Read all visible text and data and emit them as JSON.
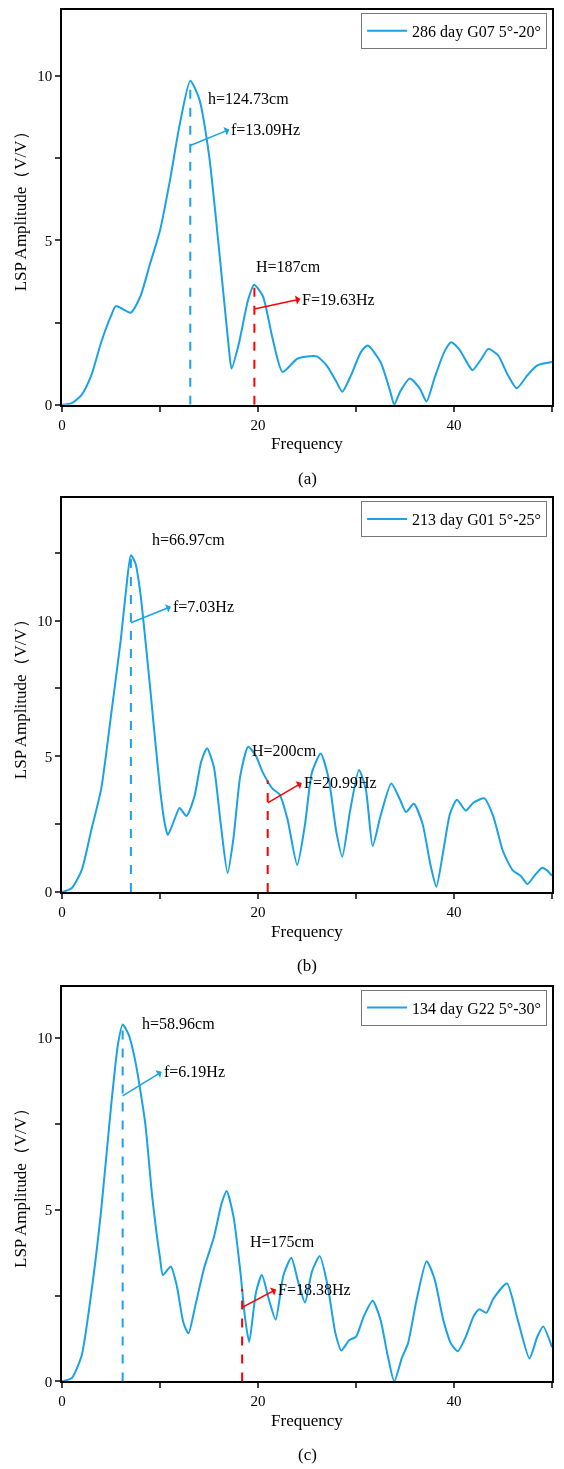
{
  "chart_data": [
    {
      "type": "line",
      "xlabel": "Frequency",
      "ylabel": "LSP Amplitude（V/V）",
      "xlim": [
        0,
        50
      ],
      "ylim": [
        0,
        12
      ],
      "xticks": [
        0,
        {
          "value": 10,
          "label": null
        },
        20,
        {
          "value": 30,
          "label": null
        },
        40,
        {
          "value": 50,
          "label": null
        }
      ],
      "yticks": [
        0,
        {
          "value": 2.5,
          "label": null
        },
        5,
        {
          "value": 7.5,
          "label": null
        },
        10
      ],
      "grid": false,
      "legend": "top right",
      "series": [
        {
          "name": "286 day G07 5°-20°",
          "color": "#1ba1e6",
          "x": [
            0,
            1,
            2,
            3,
            4,
            5,
            5.5,
            7,
            8,
            9,
            10,
            11,
            12,
            13.09,
            14,
            15,
            16,
            17,
            17.3,
            18,
            19,
            19.6,
            20.5,
            21.5,
            22.5,
            24,
            25,
            26,
            27,
            28,
            28.6,
            29.5,
            30.5,
            31.2,
            32.5,
            33.5,
            33.9,
            34.5,
            35.5,
            36.5,
            37.2,
            38,
            39,
            39.7,
            40.5,
            41.5,
            41.9,
            42.8,
            43.5,
            44.5,
            45.5,
            46.4,
            47.5,
            48.5,
            50
          ],
          "values": [
            0,
            0.05,
            0.3,
            0.9,
            1.9,
            2.7,
            3.0,
            2.8,
            3.3,
            4.3,
            5.3,
            6.8,
            8.5,
            9.85,
            9.3,
            7.6,
            4.8,
            1.8,
            1.1,
            1.8,
            3.2,
            3.65,
            3.3,
            2.0,
            1.0,
            1.4,
            1.47,
            1.47,
            1.2,
            0.7,
            0.4,
            0.9,
            1.6,
            1.8,
            1.3,
            0.4,
            0.0,
            0.4,
            0.8,
            0.5,
            0.1,
            0.8,
            1.6,
            1.9,
            1.7,
            1.2,
            1.05,
            1.4,
            1.7,
            1.5,
            0.9,
            0.5,
            0.9,
            1.2,
            1.3
          ]
        }
      ],
      "ref_lines": [
        {
          "axis": "x",
          "value": 13.09,
          "label": "f=13.09Hz",
          "color": "#1ba1e6",
          "line_style": "dashed"
        },
        {
          "axis": "x",
          "value": 19.63,
          "label": "F=19.63Hz",
          "color": "#ff0000",
          "line_style": "dashed"
        }
      ],
      "annotations": [
        {
          "text": "h=124.73cm",
          "x": 13.09,
          "y": 9.85
        },
        {
          "text": "H=187cm",
          "x": 19.63,
          "y": 3.65
        },
        "(a)"
      ]
    },
    {
      "type": "line",
      "xlabel": "Frequency",
      "ylabel": "LSP Amplitude（V/V）",
      "xlim": [
        0,
        50
      ],
      "ylim": [
        0,
        14.5
      ],
      "xticks": [
        0,
        {
          "value": 10,
          "label": null
        },
        20,
        {
          "value": 30,
          "label": null
        },
        40,
        {
          "value": 50,
          "label": null
        }
      ],
      "yticks": [
        0,
        {
          "value": 2.5,
          "label": null
        },
        5,
        {
          "value": 7.5,
          "label": null
        },
        10,
        {
          "value": 12.5,
          "label": null
        }
      ],
      "grid": false,
      "legend": "top right",
      "series": [
        {
          "name": "213 day G01 5°-25°",
          "color": "#1ba1e6",
          "x": [
            0,
            1,
            2,
            3,
            4,
            5,
            6,
            6.5,
            7.03,
            7.5,
            8,
            9,
            10,
            10.5,
            10.8,
            11.5,
            12,
            12.7,
            13.5,
            14.2,
            14.8,
            15.5,
            16.2,
            16.9,
            17.5,
            18.2,
            19,
            19.8,
            20.5,
            21.5,
            22.2,
            23,
            24,
            24.8,
            25.5,
            26.4,
            27.2,
            28,
            28.6,
            29.4,
            30.3,
            31,
            31.7,
            32.5,
            33.6,
            34.5,
            35.1,
            35.9,
            36.8,
            37.6,
            38.2,
            38.9,
            39.6,
            40.3,
            41.2,
            42,
            43.1,
            44,
            45,
            46,
            46.8,
            47.5,
            48.2,
            49,
            49.5,
            50
          ],
          "values": [
            0,
            0.15,
            0.8,
            2.3,
            3.8,
            6.5,
            9.3,
            11,
            12.4,
            12.1,
            11,
            7.5,
            3.8,
            2.5,
            2.1,
            2.7,
            3.1,
            2.8,
            3.5,
            4.8,
            5.3,
            4.6,
            2.5,
            0.7,
            2.0,
            4.3,
            5.35,
            5.0,
            4.4,
            3.8,
            3.6,
            2.7,
            1.0,
            2.5,
            4.4,
            5.1,
            4.2,
            2.2,
            1.3,
            3.0,
            4.5,
            3.8,
            1.7,
            2.8,
            4.0,
            3.4,
            2.95,
            3.25,
            2.5,
            1.0,
            0.2,
            1.5,
            2.9,
            3.4,
            3.0,
            3.3,
            3.45,
            2.8,
            1.5,
            0.8,
            0.6,
            0.3,
            0.6,
            0.9,
            0.8,
            0.6
          ]
        }
      ],
      "ref_lines": [
        {
          "axis": "x",
          "value": 7.03,
          "label": "f=7.03Hz",
          "color": "#1ba1e6",
          "line_style": "dashed"
        },
        {
          "axis": "x",
          "value": 20.99,
          "label": "F=20.99Hz",
          "color": "#ff0000",
          "line_style": "dashed"
        }
      ],
      "annotations": [
        {
          "text": "h=66.97cm",
          "x": 7.03,
          "y": 12.4
        },
        {
          "text": "H=200cm",
          "x": 20.99,
          "y": 4.0
        },
        "(b)"
      ]
    },
    {
      "type": "line",
      "xlabel": "Frequency",
      "ylabel": "LSP Amplitude（V/V）",
      "xlim": [
        0,
        50
      ],
      "ylim": [
        0,
        11.5
      ],
      "xticks": [
        0,
        {
          "value": 10,
          "label": null
        },
        20,
        {
          "value": 30,
          "label": null
        },
        40,
        {
          "value": 50,
          "label": null
        }
      ],
      "yticks": [
        0,
        {
          "value": 2.5,
          "label": null
        },
        5,
        {
          "value": 7.5,
          "label": null
        },
        10
      ],
      "grid": false,
      "legend": "top right",
      "series": [
        {
          "name": "134 day G22 5°-30°",
          "color": "#1ba1e6",
          "x": [
            0,
            1,
            2,
            3,
            4,
            5,
            5.7,
            6.19,
            6.8,
            7.5,
            8.5,
            9.2,
            10,
            10.3,
            11.1,
            11.7,
            12.4,
            12.9,
            13.6,
            14.5,
            15.5,
            16.3,
            16.8,
            17.5,
            18.2,
            18.7,
            19.1,
            19.8,
            20.4,
            21.1,
            21.8,
            22.6,
            23.4,
            24.1,
            24.8,
            25.5,
            26.3,
            27.1,
            27.9,
            28.5,
            29.3,
            30,
            30.8,
            31.7,
            32.5,
            33.2,
            33.9,
            34.7,
            35.3,
            36.2,
            37.2,
            38,
            38.9,
            39.7,
            40.4,
            41.2,
            42,
            42.6,
            43.3,
            44,
            45.4,
            46.5,
            47.7,
            48.5,
            49.1,
            50
          ],
          "values": [
            0,
            0.1,
            0.75,
            2.6,
            5.0,
            8.0,
            9.8,
            10.4,
            10.1,
            9.3,
            7.5,
            5.4,
            3.6,
            3.1,
            3.35,
            2.8,
            1.7,
            1.4,
            2.2,
            3.3,
            4.2,
            5.2,
            5.55,
            4.8,
            3.2,
            1.8,
            1.15,
            2.6,
            3.1,
            2.4,
            1.8,
            3.1,
            3.6,
            2.9,
            2.3,
            3.2,
            3.65,
            2.8,
            1.4,
            0.9,
            1.2,
            1.3,
            1.9,
            2.35,
            1.8,
            0.8,
            0.0,
            0.7,
            1.1,
            2.4,
            3.5,
            3.0,
            1.8,
            1.1,
            0.88,
            1.3,
            1.9,
            2.1,
            2.0,
            2.4,
            2.85,
            1.8,
            0.67,
            1.3,
            1.6,
            1.0
          ]
        }
      ],
      "ref_lines": [
        {
          "axis": "x",
          "value": 6.19,
          "label": "f=6.19Hz",
          "color": "#1ba1e6",
          "line_style": "dashed"
        },
        {
          "axis": "x",
          "value": 18.38,
          "label": "F=18.38Hz",
          "color": "#ff0000",
          "line_style": "dashed"
        }
      ],
      "annotations": [
        {
          "text": "h=58.96cm",
          "x": 6.19,
          "y": 10.4
        },
        {
          "text": "H=175cm",
          "x": 18.38,
          "y": 3.0
        },
        "(c)"
      ]
    }
  ]
}
